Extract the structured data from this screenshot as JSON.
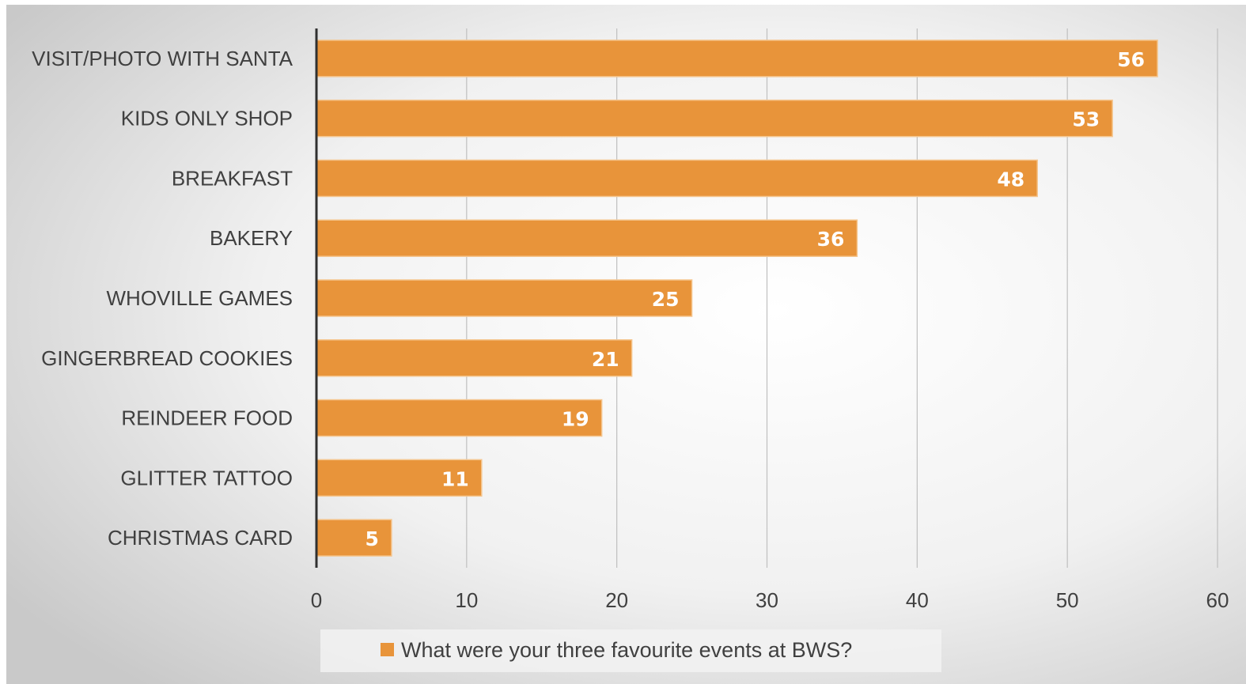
{
  "colors": {
    "bar": "#e8943a",
    "bar_edge": "#f5c58d",
    "grid": "#bfbfbf",
    "axis": "#303030",
    "text": "#404040",
    "data_label": "#ffffff"
  },
  "chart_data": {
    "type": "bar",
    "orientation": "horizontal",
    "categories": [
      "VISIT/PHOTO WITH SANTA",
      "KIDS ONLY SHOP",
      "BREAKFAST",
      "BAKERY",
      "WHOVILLE GAMES",
      "GINGERBREAD COOKIES",
      "REINDEER FOOD",
      "GLITTER TATTOO",
      "CHRISTMAS CARD"
    ],
    "series": [
      {
        "name": "What were your three favourite events at BWS?",
        "values": [
          56,
          53,
          48,
          36,
          25,
          21,
          19,
          11,
          5
        ]
      }
    ],
    "title": "",
    "xlabel": "",
    "ylabel": "",
    "xlim": [
      0,
      60
    ],
    "xticks": [
      0,
      10,
      20,
      30,
      40,
      50,
      60
    ],
    "grid": "vertical",
    "legend_position": "bottom",
    "data_labels": "inside-end"
  }
}
